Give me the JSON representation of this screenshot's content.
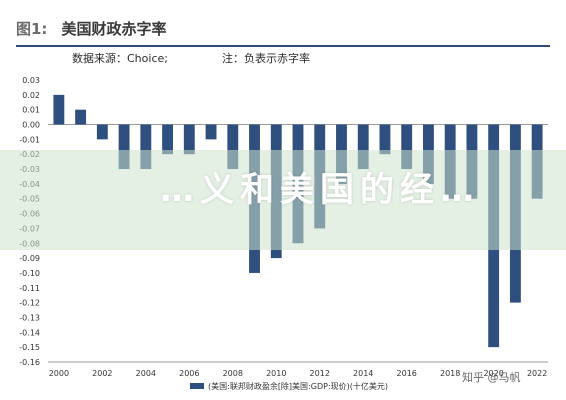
{
  "figure": {
    "label": "图1:",
    "title": "美国财政赤字率",
    "source": "数据来源：Choice;",
    "note": "注：负表示赤字率"
  },
  "overlay": {
    "text": "…义和美国的经…",
    "credit": "知乎 @马帆"
  },
  "chart_data": {
    "type": "bar",
    "categories": [
      "2000",
      "2001",
      "2002",
      "2003",
      "2004",
      "2005",
      "2006",
      "2007",
      "2008",
      "2009",
      "2010",
      "2011",
      "2012",
      "2013",
      "2014",
      "2015",
      "2016",
      "2017",
      "2018",
      "2019",
      "2020",
      "2021",
      "2022"
    ],
    "x_tick_labels": [
      "2000",
      "2002",
      "2004",
      "2006",
      "2008",
      "2010",
      "2012",
      "2014",
      "2016",
      "2018",
      "2020",
      "2022"
    ],
    "series": [
      {
        "name": "(美国:联邦财政盈余[除]美国:GDP:现价)(十亿美元)",
        "color": "#2f4f7f",
        "values": [
          0.02,
          0.01,
          -0.01,
          -0.03,
          -0.03,
          -0.02,
          -0.02,
          -0.01,
          -0.03,
          -0.1,
          -0.09,
          -0.08,
          -0.07,
          -0.04,
          -0.03,
          -0.02,
          -0.03,
          -0.04,
          -0.05,
          -0.05,
          -0.15,
          -0.12,
          -0.05
        ]
      }
    ],
    "y_tick_labels": [
      "0.03",
      "0.02",
      "0.01",
      "0.00",
      "-0.01",
      "-0.02",
      "-0.03",
      "-0.04",
      "-0.05",
      "-0.06",
      "-0.07",
      "-0.08",
      "-0.09",
      "-0.10",
      "-0.11",
      "-0.12",
      "-0.13",
      "-0.14",
      "-0.15",
      "-0.16"
    ],
    "ylim": [
      -0.16,
      0.03
    ],
    "legend_position": "bottom",
    "grid": false
  }
}
